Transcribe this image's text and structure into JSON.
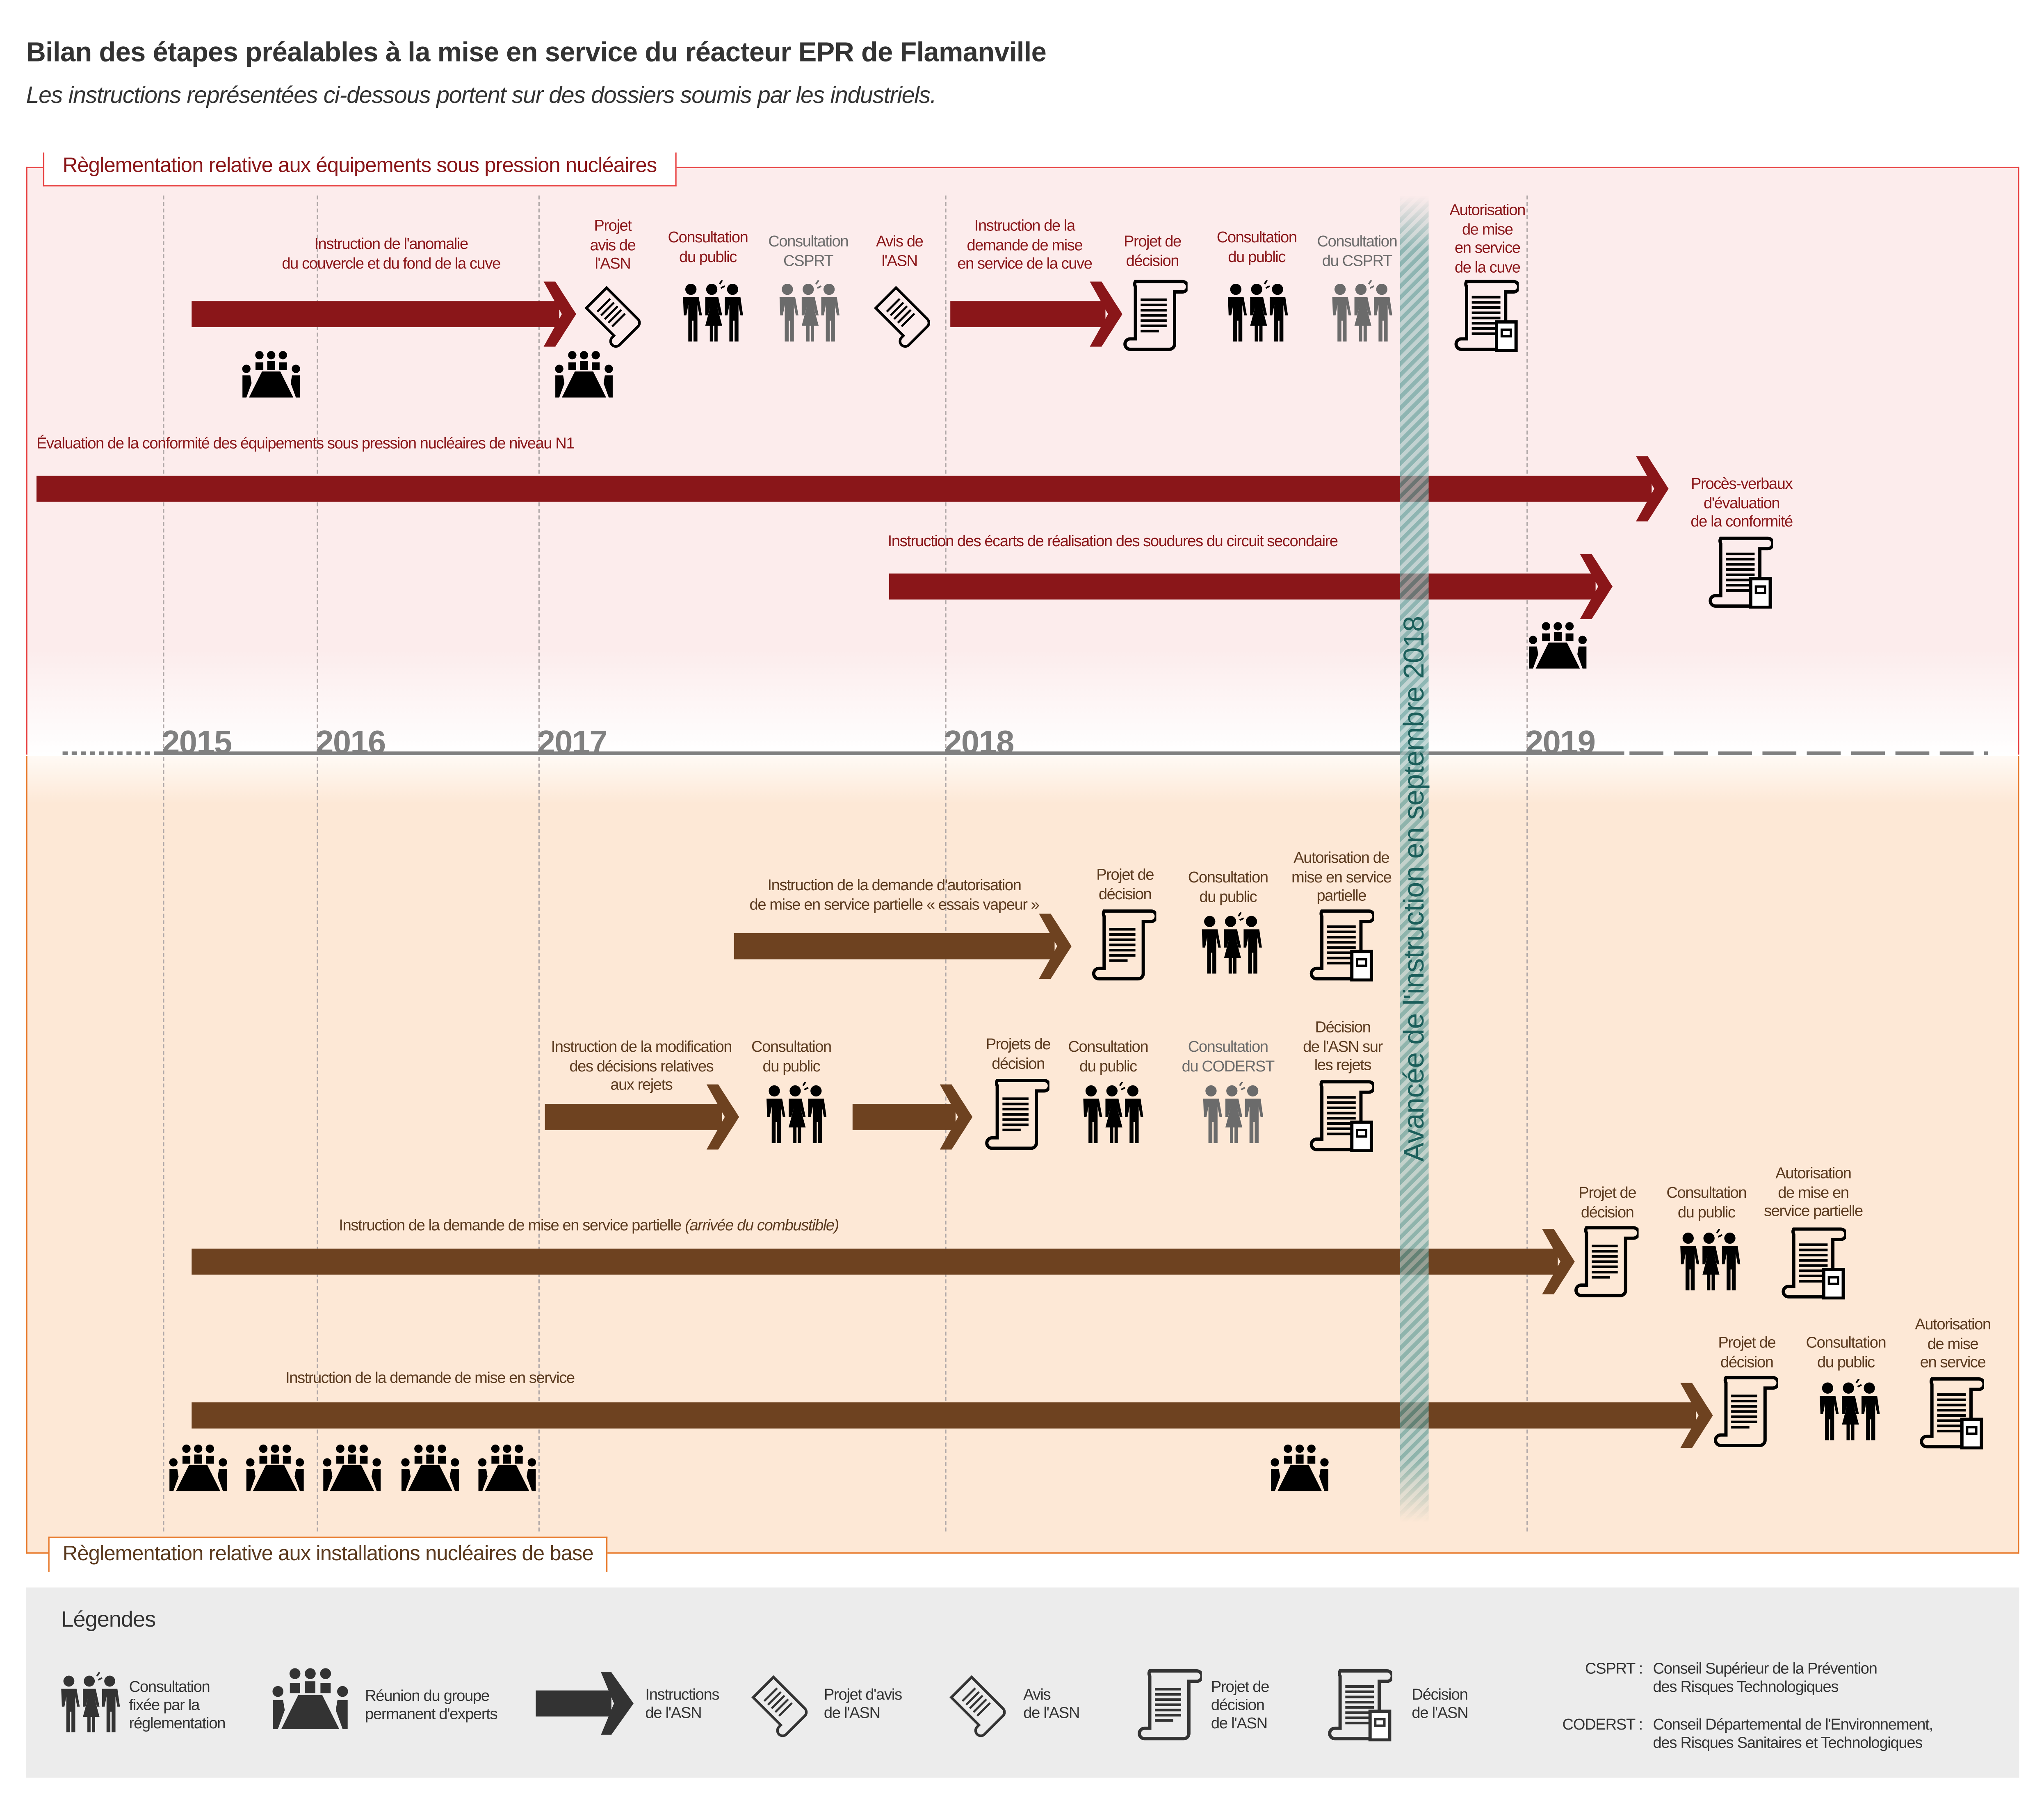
{
  "header": {
    "title": "Bilan des étapes préalables à la mise en service du réacteur EPR de Flamanville",
    "subtitle": "Les instructions représentées ci-dessous portent sur des dossiers soumis par les industriels."
  },
  "colors": {
    "esp_accent": "#8a1619",
    "inb_accent": "#6e4220",
    "esp_border": "#e84040",
    "inb_border": "#e8792a",
    "progress_band": "#5f9e9a",
    "consultation_other": "#6b6b6b"
  },
  "timeline": {
    "years": [
      "2015",
      "2016",
      "2017",
      "2018",
      "2019"
    ],
    "progress_label": "Avancée de l'instruction en septembre 2018"
  },
  "esp": {
    "section_label": "Règlementation relative aux équipements sous pression nucléaires",
    "cuve_instruction": "Instruction de l'anomalie\ndu couvercle et du fond de la cuve",
    "projet_avis": "Projet\navis de\nl'ASN",
    "consultation_public_1": "Consultation\ndu public",
    "consultation_csprt_1": "Consultation\nCSPRT",
    "avis_asn": "Avis de\nl'ASN",
    "cuve_mes_instruction": "Instruction de la\ndemande de mise\nen service de la cuve",
    "projet_decision": "Projet de\ndécision",
    "consultation_public_2": "Consultation\ndu public",
    "consultation_csprt_2": "Consultation\ndu CSPRT",
    "autorisation_cuve": "Autorisation\nde mise\nen service\nde la cuve",
    "evaluation_n1": "Évaluation de la conformité des équipements sous pression nucléaires de niveau N1",
    "proces_verbaux": "Procès-verbaux\nd'évaluation\nde la conformité",
    "soudures": "Instruction des écarts de réalisation des soudures du circuit secondaire"
  },
  "inb": {
    "section_label": "Règlementation relative aux installations nucléaires de base",
    "essais_vapeur": "Instruction de la demande d'autorisation\nde mise en service partielle « essais vapeur »",
    "ev_projet": "Projet de\ndécision",
    "ev_consultation": "Consultation\ndu public",
    "ev_autorisation": "Autorisation de\nmise en service\npartielle",
    "rejets": "Instruction de la modification\ndes décisions relatives\naux rejets",
    "rj_consultation_1": "Consultation\ndu public",
    "rj_projets": "Projets de\ndécision",
    "rj_consultation_2": "Consultation\ndu public",
    "rj_coderst": "Consultation\ndu CODERST",
    "rj_decision": "Décision\nde l'ASN sur\nles rejets",
    "combustible_main": "Instruction de la demande de mise en service partielle ",
    "combustible_italic": "(arrivée du combustible)",
    "cb_projet": "Projet de\ndécision",
    "cb_consultation": "Consultation\ndu public",
    "cb_autorisation": "Autorisation\nde mise en\nservice partielle",
    "mes": "Instruction de la demande de mise en service",
    "ms_projet": "Projet de\ndécision",
    "ms_consultation": "Consultation\ndu public",
    "ms_autorisation": "Autorisation\nde mise\nen service"
  },
  "legend": {
    "title": "Légendes",
    "items": [
      {
        "icon": "people-consultation-icon",
        "label": "Consultation\nfixée par la\nréglementation"
      },
      {
        "icon": "meeting-icon",
        "label": "Réunion du groupe\npermanent d'experts"
      },
      {
        "icon": "arrow-icon",
        "label": "Instructions\nde l'ASN"
      },
      {
        "icon": "draft-opinion-scroll-icon",
        "label": "Projet d'avis\nde l'ASN"
      },
      {
        "icon": "opinion-scroll-icon",
        "label": "Avis\nde l'ASN"
      },
      {
        "icon": "draft-decision-document-icon",
        "label": "Projet de\ndécision\nde l'ASN"
      },
      {
        "icon": "decision-document-icon",
        "label": "Décision\nde l'ASN"
      }
    ],
    "acronyms": [
      {
        "abbr": "CSPRT :",
        "text": "Conseil Supérieur de la Prévention\ndes Risques Technologiques"
      },
      {
        "abbr": "CODERST :",
        "text": "Conseil Départemental de l'Environnement,\ndes Risques Sanitaires et Technologiques"
      }
    ]
  }
}
